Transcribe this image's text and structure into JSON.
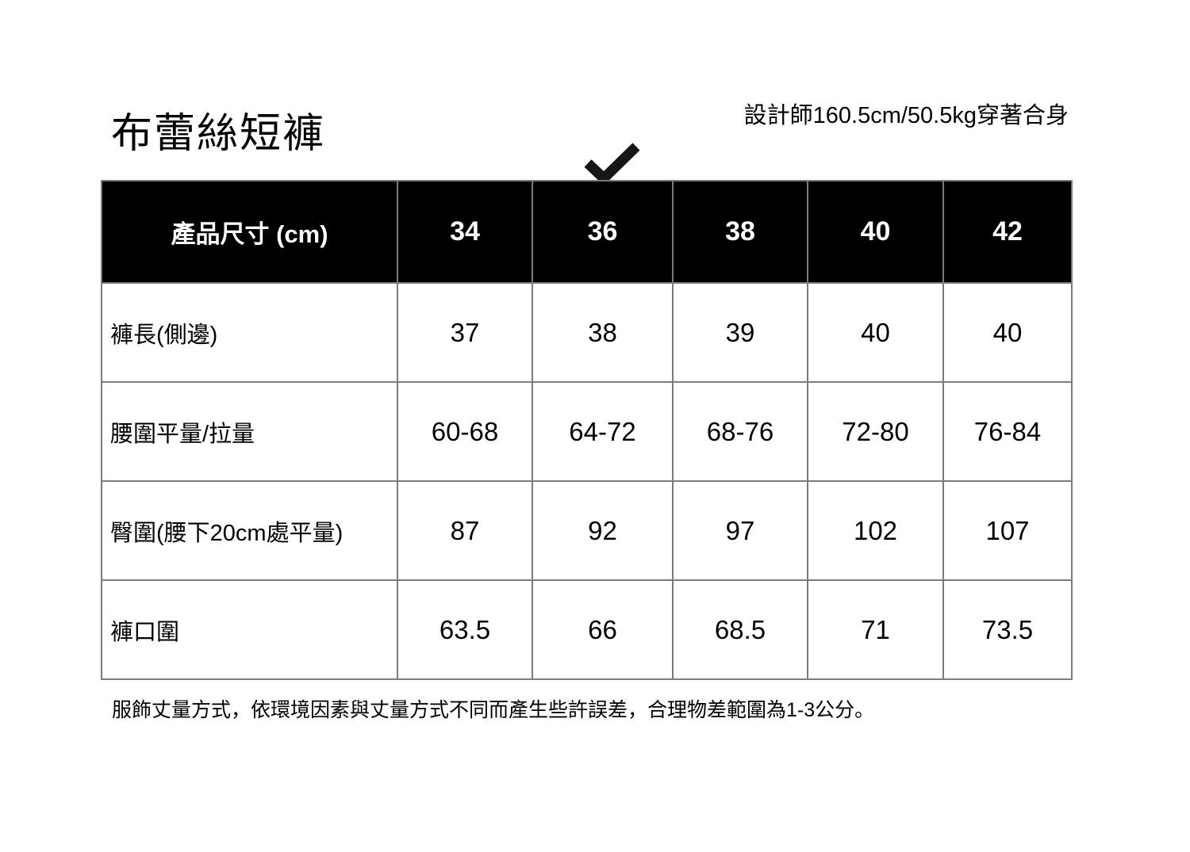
{
  "page": {
    "title": "布蕾絲短褲",
    "fit_note": "設計師160.5cm/50.5kg穿著合身",
    "footer_note": "服飾丈量方式，依環境因素與丈量方式不同而產生些許誤差，合理物差範圍為1-3公分。"
  },
  "size_chart": {
    "corner_header": "產品尺寸 (cm)",
    "size_headers": [
      "34",
      "36",
      "38",
      "40",
      "42"
    ],
    "checked_size": "36",
    "rows": [
      {
        "label": "褲長(側邊)",
        "values": [
          "37",
          "38",
          "39",
          "40",
          "40"
        ]
      },
      {
        "label": "腰圍平量/拉量",
        "values": [
          "60-68",
          "64-72",
          "68-76",
          "72-80",
          "76-84"
        ]
      },
      {
        "label": "臀圍(腰下20cm處平量)",
        "values": [
          "87",
          "92",
          "97",
          "102",
          "107"
        ]
      },
      {
        "label": "褲口圍",
        "values": [
          "63.5",
          "66",
          "68.5",
          "71",
          "73.5"
        ]
      }
    ]
  },
  "icons": {
    "checkmark": "check-icon"
  },
  "colors": {
    "background": "#ffffff",
    "text": "#000000",
    "header_bg": "#000000",
    "header_text": "#ffffff",
    "border": "#7b7b7b",
    "checkmark": "#161616"
  }
}
